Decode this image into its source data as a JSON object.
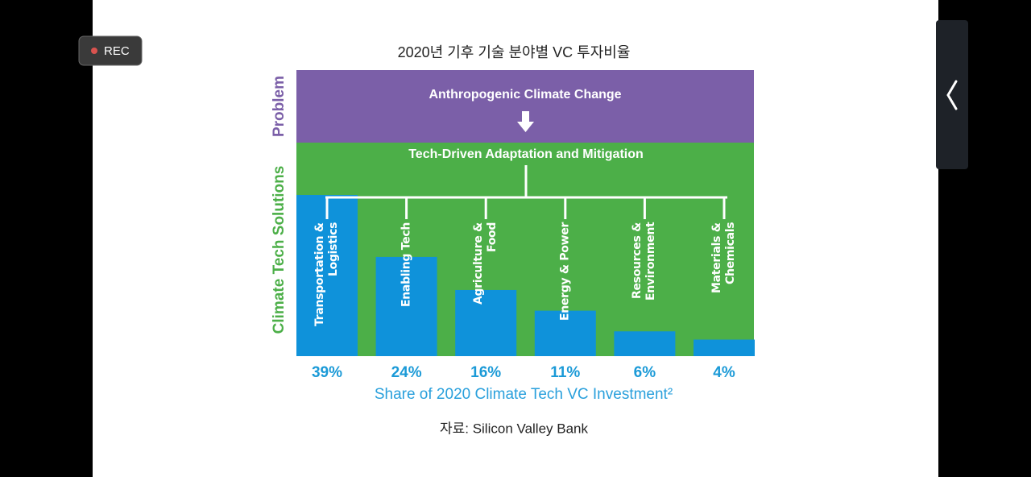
{
  "screen": {
    "rec_label": "REC"
  },
  "slide": {
    "title": "2020년 기후 기술 분야별 VC 투자비율",
    "source": "자료: Silicon Valley Bank"
  },
  "chart_data": {
    "type": "bar",
    "problem_label": "Problem",
    "problem": "Anthropogenic Climate Change",
    "solutions_label": "Climate Tech Solutions",
    "solutions": "Tech-Driven Adaptation and Mitigation",
    "categories": [
      "Transportation & Logistics",
      "Enabling Tech",
      "Agriculture & Food",
      "Energy & Power",
      "Resources & Environment",
      "Materials & Chemicals"
    ],
    "values": [
      39,
      24,
      16,
      11,
      6,
      4
    ],
    "value_labels": [
      "39%",
      "24%",
      "16%",
      "11%",
      "6%",
      "4%"
    ],
    "x_label": "Share of 2020 Climate Tech VC Investment²",
    "color": "#0f92da"
  }
}
